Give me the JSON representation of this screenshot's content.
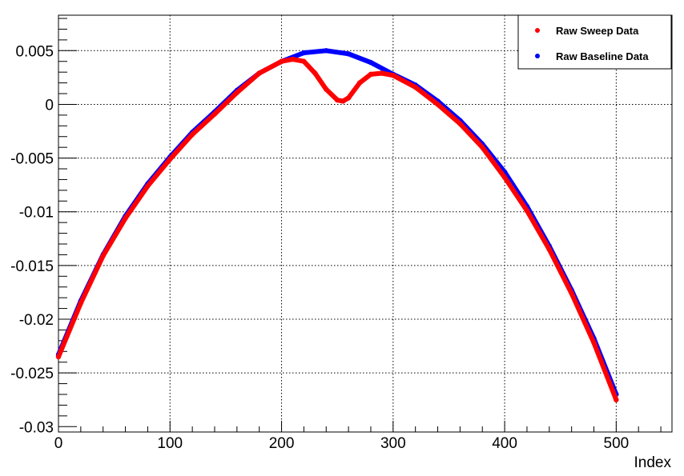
{
  "chart_data": {
    "type": "scatter",
    "title": "",
    "xlabel": "Index",
    "ylabel": "",
    "xlim": [
      0,
      550
    ],
    "ylim": [
      -0.0305,
      0.0083
    ],
    "x_ticks": [
      0,
      100,
      200,
      300,
      400,
      500
    ],
    "x_tick_labels": [
      "0",
      "100",
      "200",
      "300",
      "400",
      "500"
    ],
    "y_ticks": [
      -0.03,
      -0.025,
      -0.02,
      -0.015,
      -0.01,
      -0.005,
      0,
      0.005
    ],
    "y_tick_labels": [
      "-0.03",
      "-0.025",
      "-0.02",
      "-0.015",
      "-0.01",
      "-0.005",
      "0",
      "0.005"
    ],
    "grid": true,
    "legend_position": "top-right",
    "series": [
      {
        "name": "Raw Sweep Data",
        "color": "#ff0000",
        "x": [
          0,
          20,
          40,
          60,
          80,
          100,
          120,
          140,
          160,
          180,
          200,
          210,
          220,
          230,
          240,
          250,
          255,
          260,
          270,
          280,
          290,
          300,
          320,
          340,
          360,
          380,
          400,
          420,
          440,
          460,
          480,
          500
        ],
        "y": [
          -0.0235,
          -0.0185,
          -0.0141,
          -0.0106,
          -0.0076,
          -0.0051,
          -0.0028,
          -0.0009,
          0.0011,
          0.0029,
          0.004,
          0.0042,
          0.004,
          0.0029,
          0.0014,
          0.0004,
          0.0003,
          0.0006,
          0.002,
          0.0028,
          0.0029,
          0.0027,
          0.0016,
          0.0,
          -0.0018,
          -0.004,
          -0.0068,
          -0.0099,
          -0.0135,
          -0.0176,
          -0.0222,
          -0.0275
        ]
      },
      {
        "name": "Raw Baseline Data",
        "color": "#0000ff",
        "x": [
          0,
          20,
          40,
          60,
          80,
          100,
          120,
          140,
          160,
          180,
          200,
          220,
          240,
          260,
          280,
          300,
          320,
          340,
          360,
          380,
          400,
          420,
          440,
          460,
          480,
          500
        ],
        "y": [
          -0.0233,
          -0.0183,
          -0.014,
          -0.0104,
          -0.0074,
          -0.0049,
          -0.0026,
          -0.0007,
          0.0013,
          0.0029,
          0.004,
          0.0048,
          0.005,
          0.0047,
          0.0039,
          0.0028,
          0.0018,
          0.0003,
          -0.0015,
          -0.0037,
          -0.0063,
          -0.0095,
          -0.0132,
          -0.0173,
          -0.0218,
          -0.027
        ]
      }
    ]
  }
}
